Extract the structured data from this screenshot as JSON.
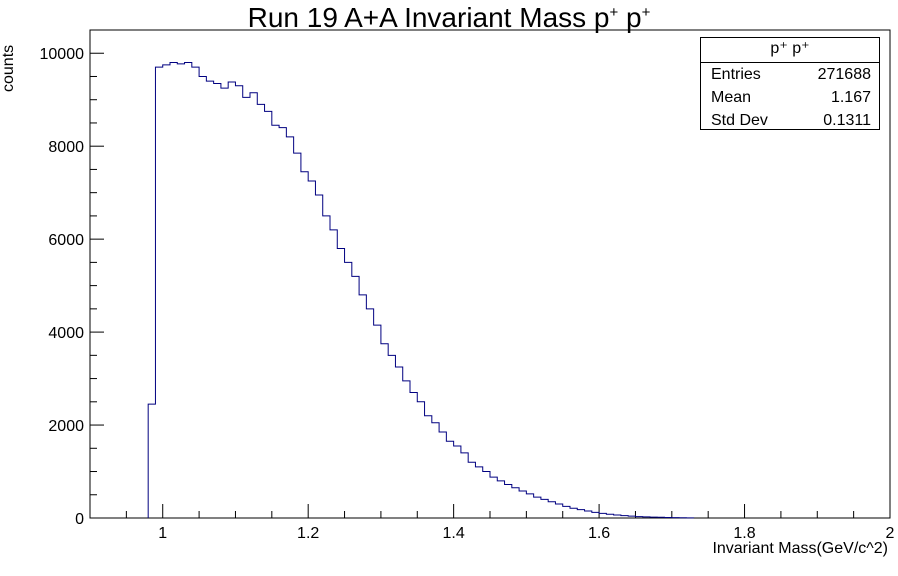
{
  "chart_data": {
    "type": "histogram",
    "title": "Run 19 A+A Invariant Mass p⁺ p⁺",
    "title_parts": {
      "main": "Run 19 A+A Invariant Mass p",
      "sup": "+",
      "space": " p"
    },
    "xlabel": "Invariant Mass(GeV/c^2)",
    "ylabel": "counts",
    "xlim": [
      0.9,
      2.0
    ],
    "ylim": [
      0,
      10500
    ],
    "x_ticks": [
      1,
      1.2,
      1.4,
      1.6,
      1.8,
      2
    ],
    "x_tick_labels": [
      "1",
      "1.2",
      "1.4",
      "1.6",
      "1.8",
      "2"
    ],
    "y_ticks": [
      0,
      2000,
      4000,
      6000,
      8000,
      10000
    ],
    "y_tick_labels": [
      "0",
      "2000",
      "4000",
      "6000",
      "8000",
      "10000"
    ],
    "grid": false,
    "line_color": "#000080",
    "bin_edges_start": 0.9,
    "bin_width": 0.01,
    "counts": [
      0,
      0,
      0,
      0,
      0,
      0,
      0,
      0,
      2450,
      9700,
      9750,
      9800,
      9770,
      9800,
      9700,
      9500,
      9400,
      9350,
      9250,
      9380,
      9300,
      9050,
      9150,
      8900,
      8750,
      8450,
      8400,
      8200,
      7850,
      7450,
      7250,
      6950,
      6500,
      6200,
      5800,
      5500,
      5200,
      4800,
      4500,
      4150,
      3750,
      3500,
      3250,
      2950,
      2700,
      2500,
      2200,
      2050,
      1850,
      1650,
      1550,
      1400,
      1200,
      1100,
      1000,
      880,
      800,
      720,
      650,
      580,
      520,
      450,
      400,
      350,
      300,
      250,
      210,
      180,
      150,
      120,
      100,
      80,
      65,
      50,
      40,
      30,
      25,
      20,
      15,
      10,
      8,
      5,
      3,
      0,
      0,
      0,
      0,
      0,
      0,
      0,
      0,
      0,
      0,
      0,
      0,
      0,
      0,
      0,
      0,
      0,
      0,
      0,
      0,
      0,
      0,
      0,
      0,
      0,
      0,
      0,
      0
    ],
    "stats_box": {
      "title": "p⁺ p⁺",
      "rows": [
        {
          "label": "Entries",
          "value": "271688"
        },
        {
          "label": "Mean",
          "value": "1.167"
        },
        {
          "label": "Std Dev",
          "value": "0.1311"
        }
      ]
    }
  }
}
